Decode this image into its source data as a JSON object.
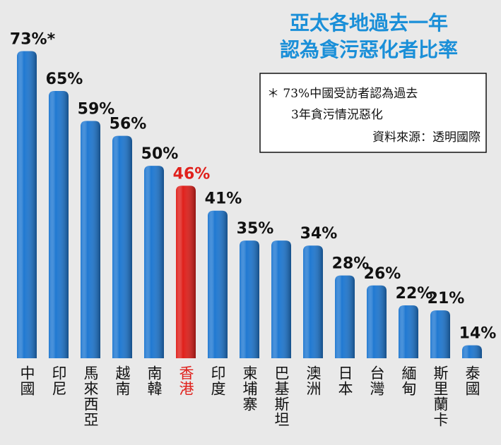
{
  "chart_data": {
    "type": "bar",
    "title": [
      "亞太各地過去一年",
      "認為貪污惡化者比率"
    ],
    "note": [
      "＊ 73%中國受訪者認為過去",
      "3年貪污情況惡化",
      "資料來源：透明國際"
    ],
    "categories": [
      "中國",
      "印尼",
      "馬來西亞",
      "越南",
      "南韓",
      "香港",
      "印度",
      "柬埔寨",
      "巴基斯坦",
      "澳洲",
      "日本",
      "台灣",
      "緬甸",
      "斯里蘭卡",
      "泰國"
    ],
    "values": [
      73,
      65,
      59,
      56,
      50,
      46,
      41,
      35,
      35,
      34,
      28,
      26,
      22,
      21,
      14
    ],
    "value_labels": [
      "73%*",
      "65%",
      "59%",
      "56%",
      "50%",
      "46%",
      "41%",
      "35%",
      null,
      "34%",
      "28%",
      "26%",
      "22%",
      "21%",
      "14%"
    ],
    "colors": [
      "#1f78d1",
      "#1f78d1",
      "#1f78d1",
      "#1f78d1",
      "#1f78d1",
      "#e0201b",
      "#1f78d1",
      "#1f78d1",
      "#1f78d1",
      "#1f78d1",
      "#1f78d1",
      "#1f78d1",
      "#1f78d1",
      "#1f78d1",
      "#1f78d1"
    ],
    "label_colors": [
      "#111111",
      "#111111",
      "#111111",
      "#111111",
      "#111111",
      "#e0201b",
      "#111111",
      "#111111",
      "#111111",
      "#111111",
      "#111111",
      "#111111",
      "#111111",
      "#111111",
      "#111111"
    ],
    "ylim": [
      11.4,
      80
    ]
  }
}
